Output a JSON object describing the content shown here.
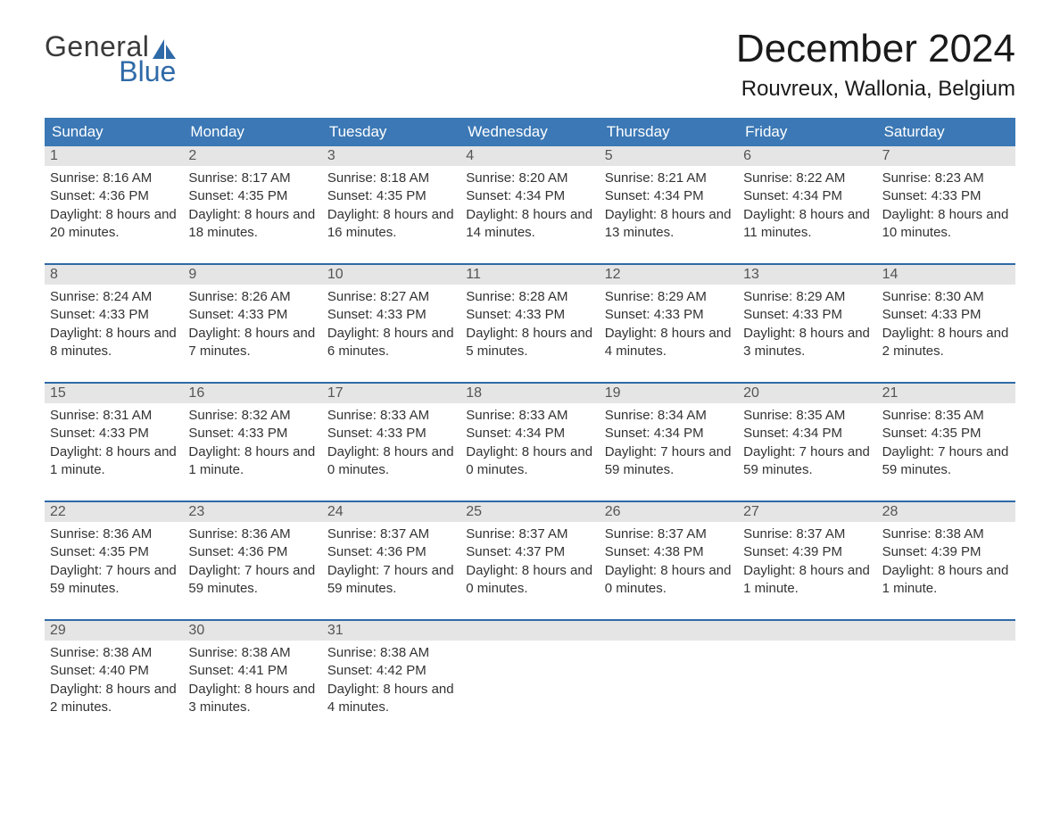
{
  "logo": {
    "text_general": "General",
    "text_blue": "Blue",
    "sail_color": "#2f6aa8"
  },
  "title": {
    "month": "December 2024",
    "location": "Rouvreux, Wallonia, Belgium"
  },
  "weekdays": [
    "Sunday",
    "Monday",
    "Tuesday",
    "Wednesday",
    "Thursday",
    "Friday",
    "Saturday"
  ],
  "labels": {
    "sunrise": "Sunrise:",
    "sunset": "Sunset:",
    "daylight": "Daylight:"
  },
  "colors": {
    "blue_header": "#3b78b5",
    "blue_accent": "#2f6aa8",
    "daynum_bg": "#e5e5e5",
    "text_dark": "#333333",
    "page_bg": "#ffffff"
  },
  "weeks": [
    [
      {
        "n": "1",
        "sr": "8:16 AM",
        "ss": "4:36 PM",
        "dl": "8 hours and 20 minutes."
      },
      {
        "n": "2",
        "sr": "8:17 AM",
        "ss": "4:35 PM",
        "dl": "8 hours and 18 minutes."
      },
      {
        "n": "3",
        "sr": "8:18 AM",
        "ss": "4:35 PM",
        "dl": "8 hours and 16 minutes."
      },
      {
        "n": "4",
        "sr": "8:20 AM",
        "ss": "4:34 PM",
        "dl": "8 hours and 14 minutes."
      },
      {
        "n": "5",
        "sr": "8:21 AM",
        "ss": "4:34 PM",
        "dl": "8 hours and 13 minutes."
      },
      {
        "n": "6",
        "sr": "8:22 AM",
        "ss": "4:34 PM",
        "dl": "8 hours and 11 minutes."
      },
      {
        "n": "7",
        "sr": "8:23 AM",
        "ss": "4:33 PM",
        "dl": "8 hours and 10 minutes."
      }
    ],
    [
      {
        "n": "8",
        "sr": "8:24 AM",
        "ss": "4:33 PM",
        "dl": "8 hours and 8 minutes."
      },
      {
        "n": "9",
        "sr": "8:26 AM",
        "ss": "4:33 PM",
        "dl": "8 hours and 7 minutes."
      },
      {
        "n": "10",
        "sr": "8:27 AM",
        "ss": "4:33 PM",
        "dl": "8 hours and 6 minutes."
      },
      {
        "n": "11",
        "sr": "8:28 AM",
        "ss": "4:33 PM",
        "dl": "8 hours and 5 minutes."
      },
      {
        "n": "12",
        "sr": "8:29 AM",
        "ss": "4:33 PM",
        "dl": "8 hours and 4 minutes."
      },
      {
        "n": "13",
        "sr": "8:29 AM",
        "ss": "4:33 PM",
        "dl": "8 hours and 3 minutes."
      },
      {
        "n": "14",
        "sr": "8:30 AM",
        "ss": "4:33 PM",
        "dl": "8 hours and 2 minutes."
      }
    ],
    [
      {
        "n": "15",
        "sr": "8:31 AM",
        "ss": "4:33 PM",
        "dl": "8 hours and 1 minute."
      },
      {
        "n": "16",
        "sr": "8:32 AM",
        "ss": "4:33 PM",
        "dl": "8 hours and 1 minute."
      },
      {
        "n": "17",
        "sr": "8:33 AM",
        "ss": "4:33 PM",
        "dl": "8 hours and 0 minutes."
      },
      {
        "n": "18",
        "sr": "8:33 AM",
        "ss": "4:34 PM",
        "dl": "8 hours and 0 minutes."
      },
      {
        "n": "19",
        "sr": "8:34 AM",
        "ss": "4:34 PM",
        "dl": "7 hours and 59 minutes."
      },
      {
        "n": "20",
        "sr": "8:35 AM",
        "ss": "4:34 PM",
        "dl": "7 hours and 59 minutes."
      },
      {
        "n": "21",
        "sr": "8:35 AM",
        "ss": "4:35 PM",
        "dl": "7 hours and 59 minutes."
      }
    ],
    [
      {
        "n": "22",
        "sr": "8:36 AM",
        "ss": "4:35 PM",
        "dl": "7 hours and 59 minutes."
      },
      {
        "n": "23",
        "sr": "8:36 AM",
        "ss": "4:36 PM",
        "dl": "7 hours and 59 minutes."
      },
      {
        "n": "24",
        "sr": "8:37 AM",
        "ss": "4:36 PM",
        "dl": "7 hours and 59 minutes."
      },
      {
        "n": "25",
        "sr": "8:37 AM",
        "ss": "4:37 PM",
        "dl": "8 hours and 0 minutes."
      },
      {
        "n": "26",
        "sr": "8:37 AM",
        "ss": "4:38 PM",
        "dl": "8 hours and 0 minutes."
      },
      {
        "n": "27",
        "sr": "8:37 AM",
        "ss": "4:39 PM",
        "dl": "8 hours and 1 minute."
      },
      {
        "n": "28",
        "sr": "8:38 AM",
        "ss": "4:39 PM",
        "dl": "8 hours and 1 minute."
      }
    ],
    [
      {
        "n": "29",
        "sr": "8:38 AM",
        "ss": "4:40 PM",
        "dl": "8 hours and 2 minutes."
      },
      {
        "n": "30",
        "sr": "8:38 AM",
        "ss": "4:41 PM",
        "dl": "8 hours and 3 minutes."
      },
      {
        "n": "31",
        "sr": "8:38 AM",
        "ss": "4:42 PM",
        "dl": "8 hours and 4 minutes."
      },
      null,
      null,
      null,
      null
    ]
  ]
}
